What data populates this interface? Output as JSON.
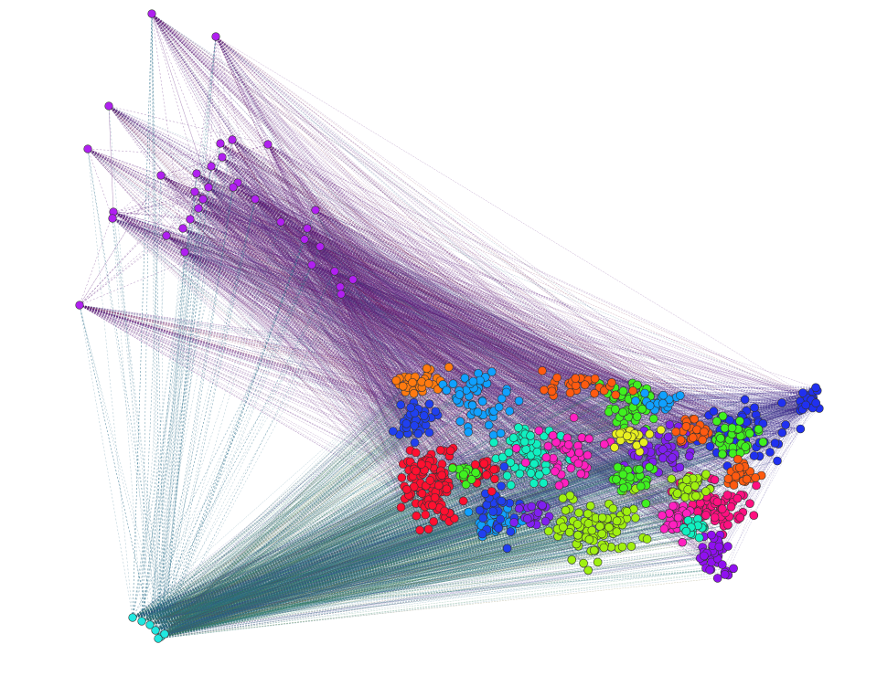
{
  "graph": {
    "background": "#ffffff",
    "node_stroke": "#333333",
    "edge_colors": [
      "#5b1a7a",
      "#2a6f8a",
      "#2c7a5a",
      "#7a1a3a",
      "#3a2a8a",
      "#6f6a2a"
    ],
    "clusters": [
      {
        "id": "alaska-group",
        "color": "#b020f0"
      },
      {
        "id": "hawaii-group",
        "color": "#20e8e0"
      },
      {
        "id": "orange-nw",
        "color": "#ff7a10"
      },
      {
        "id": "blue-west",
        "color": "#2040f0"
      },
      {
        "id": "red-cal",
        "color": "#ff1030"
      },
      {
        "id": "sky-mountain",
        "color": "#10a0ff"
      },
      {
        "id": "teal-central",
        "color": "#10f0c0"
      },
      {
        "id": "green-plains",
        "color": "#40f020"
      },
      {
        "id": "lime-south",
        "color": "#a0f010"
      },
      {
        "id": "magenta-mid",
        "color": "#ff20c0"
      },
      {
        "id": "violet-midwest",
        "color": "#8020f0"
      },
      {
        "id": "orange-lakes",
        "color": "#ff5a10"
      },
      {
        "id": "yellow-ohio",
        "color": "#e8f020"
      },
      {
        "id": "pink-southeast",
        "color": "#ff1080"
      },
      {
        "id": "purple-florida",
        "color": "#9010f0"
      },
      {
        "id": "blue-northeast",
        "color": "#2030f0"
      }
    ]
  }
}
